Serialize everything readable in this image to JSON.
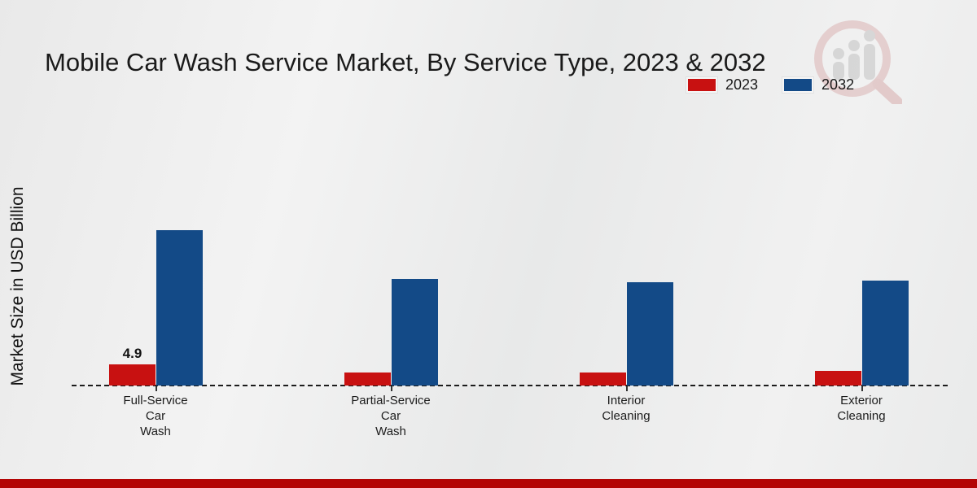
{
  "title": "Mobile Car Wash Service Market, By Service Type, 2023 & 2032",
  "y_axis_label": "Market Size in USD Billion",
  "legend": {
    "items": [
      {
        "label": "2023",
        "color": "#c81111"
      },
      {
        "label": "2032",
        "color": "#134a87"
      }
    ]
  },
  "colors": {
    "series_2023": "#c81111",
    "series_2032": "#134a87",
    "footer_strip": "#b30505",
    "axis_line": "#1c1c1c",
    "background": "#ededed"
  },
  "logo": {
    "name": "market-research-watermark-logo"
  },
  "chart_data": {
    "type": "bar",
    "title": "Mobile Car Wash Service Market, By Service Type, 2023 & 2032",
    "xlabel": "",
    "ylabel": "Market Size in USD Billion",
    "categories": [
      "Full-Service Car Wash",
      "Partial-Service Car Wash",
      "Interior Cleaning",
      "Exterior Cleaning"
    ],
    "category_lines": [
      [
        "Full-Service",
        "Car",
        "Wash"
      ],
      [
        "Partial-Service",
        "Car",
        "Wash"
      ],
      [
        "Interior",
        "Cleaning"
      ],
      [
        "Exterior",
        "Cleaning"
      ]
    ],
    "series": [
      {
        "name": "2023",
        "color": "#c81111",
        "values": [
          4.9,
          3.0,
          3.0,
          3.4
        ],
        "labels": [
          "4.9",
          "",
          "",
          ""
        ]
      },
      {
        "name": "2032",
        "color": "#134a87",
        "values": [
          36.0,
          24.7,
          24.0,
          24.3
        ],
        "labels": [
          "",
          "",
          "",
          ""
        ]
      }
    ],
    "ylim": [
      0,
      40
    ],
    "grid": false,
    "y_ticks_visible": false,
    "legend_position": "top-right",
    "baseline_style": "dashed"
  }
}
